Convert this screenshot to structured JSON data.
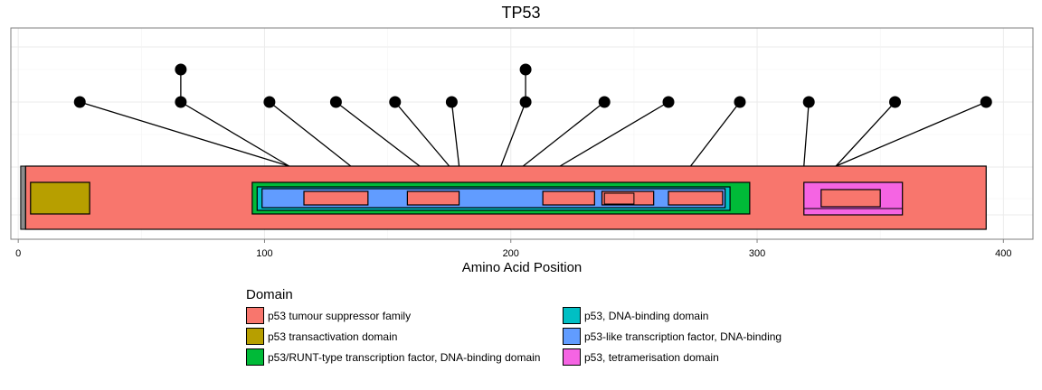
{
  "chart_data": {
    "type": "lollipop",
    "title": "TP53",
    "xlabel": "Amino Acid Position",
    "ylabel": "",
    "xlim": [
      -3,
      412
    ],
    "xticks": [
      0,
      100,
      200,
      300,
      400
    ],
    "grid": true,
    "protein": {
      "start": 1,
      "end": 393,
      "color": "#F8766D"
    },
    "domains": [
      {
        "name": "p53 tumour suppressor family",
        "color": "#F8766D",
        "start": 3,
        "end": 393
      },
      {
        "name": "p53 transactivation domain",
        "color": "#B79F00",
        "start": 5,
        "end": 29
      },
      {
        "name": "p53/RUNT-type transcription factor, DNA-binding domain",
        "color": "#00BA38",
        "start": 95,
        "end": 297
      },
      {
        "name": "p53, DNA-binding domain",
        "color": "#00BFC4",
        "start": 97,
        "end": 289
      },
      {
        "name": "p53-like transcription factor, DNA-binding",
        "color": "#619CFF",
        "start": 99,
        "end": 287
      },
      {
        "name": "p53, tetramerisation domain",
        "color": "#F564E3",
        "start": 319,
        "end": 359
      },
      {
        "name": "p53 tumour suppressor family",
        "color": "#F8766D",
        "start": 116,
        "end": 142
      },
      {
        "name": "p53 tumour suppressor family",
        "color": "#F8766D",
        "start": 158,
        "end": 179
      },
      {
        "name": "p53 tumour suppressor family",
        "color": "#F8766D",
        "start": 213,
        "end": 234
      },
      {
        "name": "p53 tumour suppressor family",
        "color": "#F8766D",
        "start": 237,
        "end": 258
      },
      {
        "name": "p53 tumour suppressor family",
        "color": "#F8766D",
        "start": 264,
        "end": 286
      },
      {
        "name": "p53 tumour suppressor family",
        "color": "#F8766D",
        "start": 326,
        "end": 350
      }
    ],
    "legend": {
      "title": "Domain",
      "placement": "bottom",
      "items": [
        {
          "label": "p53 tumour suppressor family",
          "color": "#F8766D"
        },
        {
          "label": "p53, DNA-binding domain",
          "color": "#00BFC4"
        },
        {
          "label": "p53 transactivation domain",
          "color": "#B79F00"
        },
        {
          "label": "p53-like transcription factor, DNA-binding",
          "color": "#619CFF"
        },
        {
          "label": "p53/RUNT-type transcription factor, DNA-binding domain",
          "color": "#00BA38"
        },
        {
          "label": "p53, tetramerisation domain",
          "color": "#F564E3"
        }
      ]
    },
    "mutations": [
      {
        "position": 110,
        "x_label": 25,
        "count": 1
      },
      {
        "position": 110,
        "x_label": 66,
        "count": 2
      },
      {
        "position": 135,
        "x_label": 102,
        "count": 1
      },
      {
        "position": 163,
        "x_label": 129,
        "count": 1
      },
      {
        "position": 175,
        "x_label": 153,
        "count": 1
      },
      {
        "position": 179,
        "x_label": 176,
        "count": 1
      },
      {
        "position": 196,
        "x_label": 206,
        "count": 2
      },
      {
        "position": 205,
        "x_label": 238,
        "count": 1
      },
      {
        "position": 220,
        "x_label": 264,
        "count": 1
      },
      {
        "position": 273,
        "x_label": 293,
        "count": 1
      },
      {
        "position": 319,
        "x_label": 321,
        "count": 1
      },
      {
        "position": 332,
        "x_label": 356,
        "count": 1
      },
      {
        "position": 332,
        "x_label": 393,
        "count": 1
      }
    ]
  }
}
